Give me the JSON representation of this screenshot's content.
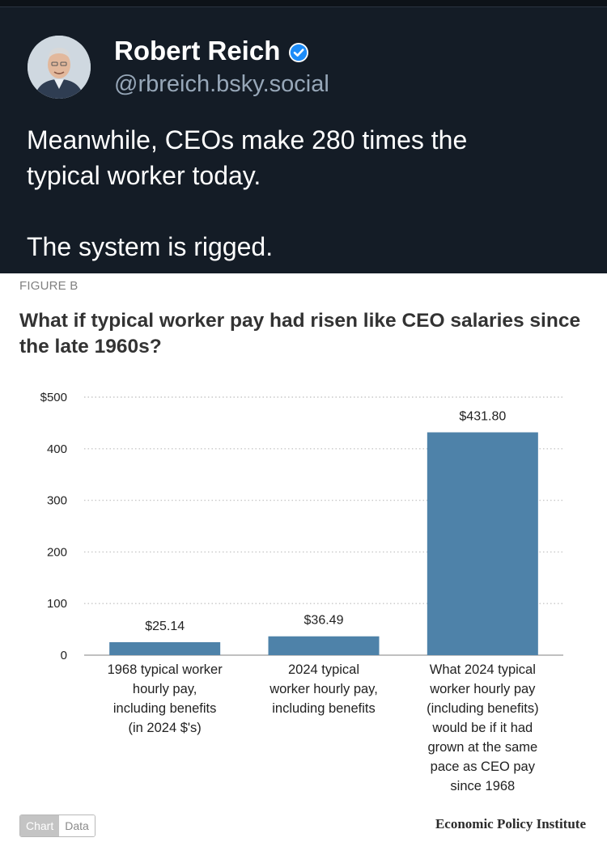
{
  "post": {
    "author_name": "Robert Reich",
    "handle": "@rbreich.bsky.social",
    "text_lines": [
      "Meanwhile, CEOs make 280 times the",
      "typical worker today.",
      "The system is rigged."
    ],
    "icons": {
      "avatar": "author-photo",
      "verified": "verified-check-icon"
    },
    "colors": {
      "background": "#141c26",
      "handle": "#97a7b8",
      "verified": "#1d8cf8"
    }
  },
  "figure": {
    "label": "FIGURE B",
    "source": "Economic Policy Institute",
    "toggle": {
      "chart_label": "Chart",
      "data_label": "Data"
    }
  },
  "chart_data": {
    "type": "bar",
    "title": "What if typical worker pay had risen like CEO salaries since the late 1960s?",
    "categories": [
      [
        "1968 typical worker",
        "hourly pay,",
        "including benefits",
        "(in 2024 $'s)"
      ],
      [
        "2024 typical",
        "worker hourly pay,",
        "including benefits"
      ],
      [
        "What 2024 typical",
        "worker hourly pay",
        "(including benefits)",
        "would be if it had",
        "grown at the same",
        "pace as CEO pay",
        "since 1968"
      ]
    ],
    "values": [
      25.14,
      36.49,
      431.8
    ],
    "value_labels": [
      "$25.14",
      "$36.49",
      "$431.80"
    ],
    "ylim": [
      0,
      500
    ],
    "yticks": [
      0,
      100,
      200,
      300,
      400,
      500
    ],
    "ytick_labels": [
      "0",
      "100",
      "200",
      "300",
      "400",
      "$500"
    ],
    "grid": true,
    "bar_color": "#4e82a9",
    "xlabel": "",
    "ylabel": ""
  }
}
